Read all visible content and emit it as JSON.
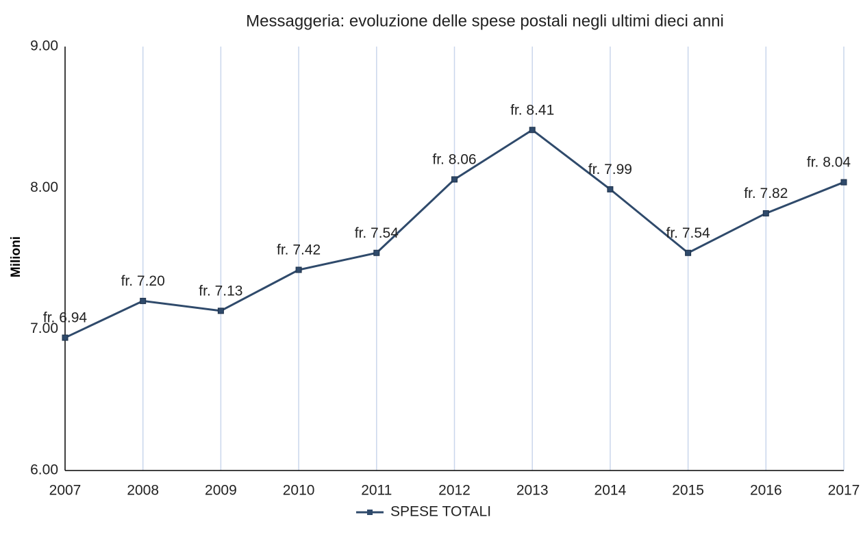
{
  "chart_data": {
    "type": "line",
    "title": "Messaggeria: evoluzione  delle spese postali negli ultimi dieci anni",
    "y_label": "Milioni",
    "categories": [
      "2007",
      "2008",
      "2009",
      "2010",
      "2011",
      "2012",
      "2013",
      "2014",
      "2015",
      "2016",
      "2017"
    ],
    "series": [
      {
        "name": "SPESE TOTALI",
        "color": "#2f4a6b",
        "values": [
          6.94,
          7.2,
          7.13,
          7.42,
          7.54,
          8.06,
          8.41,
          7.99,
          7.54,
          7.82,
          8.04
        ],
        "value_labels": [
          "fr. 6.94",
          "fr. 7.20",
          "fr. 7.13",
          "fr. 7.42",
          "fr. 7.54",
          "fr. 8.06",
          "fr. 8.41",
          "fr. 7.99",
          "fr. 7.54",
          "fr. 7.82",
          "fr. 8.04"
        ]
      }
    ],
    "ylim": [
      6,
      9
    ],
    "yticks": [
      {
        "value": 6,
        "label": "6.00"
      },
      {
        "value": 7,
        "label": "7.00"
      },
      {
        "value": 8,
        "label": "8.00"
      },
      {
        "value": 9,
        "label": "9.00"
      }
    ],
    "grid": "x",
    "grid_color": "#c9d6ec",
    "legend": "bottom"
  }
}
